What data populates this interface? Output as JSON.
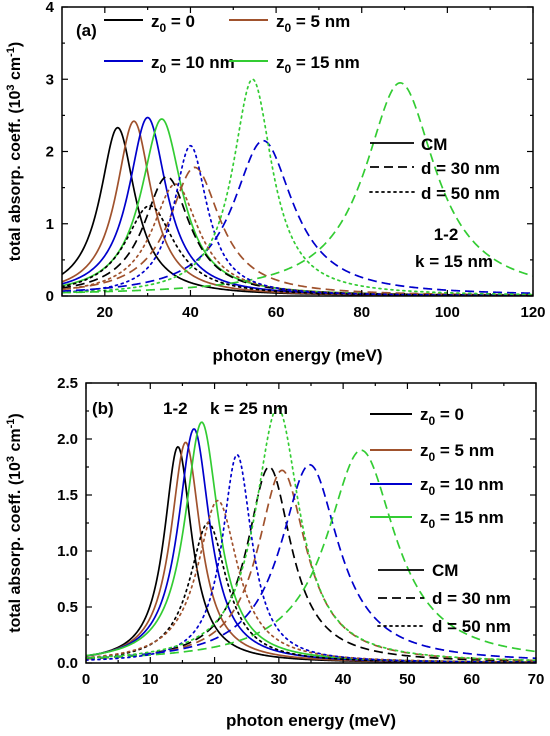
{
  "chart_data": [
    {
      "type": "line",
      "panel_label": "(a)",
      "xlabel": "photon energy (meV)",
      "ylabel_parts": [
        "total absorp. coeff. (10",
        "3",
        " cm",
        "-1",
        ")"
      ],
      "xlim": [
        10,
        120
      ],
      "ylim": [
        0,
        4
      ],
      "x_ticks": [
        20,
        40,
        60,
        80,
        100,
        120
      ],
      "y_ticks": [
        0,
        1,
        2,
        3,
        4
      ],
      "grid": false,
      "annotation_lines": [
        "1-2",
        "k = 15 nm"
      ],
      "series": [
        {
          "z0_label": "0",
          "d_label": "CM",
          "color": "#000000",
          "style": "solid",
          "peak_x": 23.0,
          "peak_y": 2.33
        },
        {
          "z0_label": "5 nm",
          "d_label": "CM",
          "color": "#a0522d",
          "style": "solid",
          "peak_x": 26.8,
          "peak_y": 2.42
        },
        {
          "z0_label": "10 nm",
          "d_label": "CM",
          "color": "#0000cc",
          "style": "solid",
          "peak_x": 30.0,
          "peak_y": 2.47
        },
        {
          "z0_label": "15 nm",
          "d_label": "CM",
          "color": "#33cc33",
          "style": "solid",
          "peak_x": 33.3,
          "peak_y": 2.45
        },
        {
          "z0_label": "0",
          "d_label": "d = 30 nm",
          "color": "#000000",
          "style": "dash",
          "peak_x": 34.5,
          "peak_y": 1.65
        },
        {
          "z0_label": "5 nm",
          "d_label": "d = 30 nm",
          "color": "#a0522d",
          "style": "dash",
          "peak_x": 41.0,
          "peak_y": 1.78
        },
        {
          "z0_label": "10 nm",
          "d_label": "d = 30 nm",
          "color": "#0000cc",
          "style": "dash",
          "peak_x": 57.0,
          "peak_y": 2.15
        },
        {
          "z0_label": "15 nm",
          "d_label": "d = 30 nm",
          "color": "#33cc33",
          "style": "dash",
          "peak_x": 89.0,
          "peak_y": 2.95
        },
        {
          "z0_label": "0",
          "d_label": "d = 50 nm",
          "color": "#000000",
          "style": "dot",
          "peak_x": 30.5,
          "peak_y": 1.25
        },
        {
          "z0_label": "5 nm",
          "d_label": "d = 50 nm",
          "color": "#a0522d",
          "style": "dot",
          "peak_x": 36.5,
          "peak_y": 1.55
        },
        {
          "z0_label": "10 nm",
          "d_label": "d = 50 nm",
          "color": "#0000cc",
          "style": "dot",
          "peak_x": 40.0,
          "peak_y": 2.08
        },
        {
          "z0_label": "15 nm",
          "d_label": "d = 50 nm",
          "color": "#33cc33",
          "style": "dot",
          "peak_x": 54.5,
          "peak_y": 3.0
        }
      ]
    },
    {
      "type": "line",
      "panel_label": "(b)",
      "xlabel": "photon energy (meV)",
      "ylabel_parts": [
        "total absorp. coeff. (10",
        "3",
        " cm",
        "-1",
        ")"
      ],
      "xlim": [
        0,
        70
      ],
      "ylim": [
        0,
        2.5
      ],
      "x_ticks": [
        0,
        10,
        20,
        30,
        40,
        50,
        60,
        70
      ],
      "y_ticks": [
        0.0,
        0.5,
        1.0,
        1.5,
        2.0,
        2.5
      ],
      "grid": false,
      "annotation_lines": [
        "1-2",
        "k = 25 nm"
      ],
      "series": [
        {
          "z0_label": "0",
          "d_label": "CM",
          "color": "#000000",
          "style": "solid",
          "peak_x": 14.3,
          "peak_y": 1.93
        },
        {
          "z0_label": "5 nm",
          "d_label": "CM",
          "color": "#a0522d",
          "style": "solid",
          "peak_x": 15.5,
          "peak_y": 1.97
        },
        {
          "z0_label": "10 nm",
          "d_label": "CM",
          "color": "#0000cc",
          "style": "solid",
          "peak_x": 16.8,
          "peak_y": 2.09
        },
        {
          "z0_label": "15 nm",
          "d_label": "CM",
          "color": "#33cc33",
          "style": "solid",
          "peak_x": 18.0,
          "peak_y": 2.15
        },
        {
          "z0_label": "0",
          "d_label": "d = 30 nm",
          "color": "#000000",
          "style": "dash",
          "peak_x": 28.5,
          "peak_y": 1.75
        },
        {
          "z0_label": "5 nm",
          "d_label": "d = 30 nm",
          "color": "#a0522d",
          "style": "dash",
          "peak_x": 30.5,
          "peak_y": 1.72
        },
        {
          "z0_label": "10 nm",
          "d_label": "d = 30 nm",
          "color": "#0000cc",
          "style": "dash",
          "peak_x": 34.8,
          "peak_y": 1.77
        },
        {
          "z0_label": "15 nm",
          "d_label": "d = 30 nm",
          "color": "#33cc33",
          "style": "dash",
          "peak_x": 42.8,
          "peak_y": 1.9
        },
        {
          "z0_label": "0",
          "d_label": "d = 50 nm",
          "color": "#000000",
          "style": "dot",
          "peak_x": 19.0,
          "peak_y": 1.25
        },
        {
          "z0_label": "5 nm",
          "d_label": "d = 50 nm",
          "color": "#a0522d",
          "style": "dot",
          "peak_x": 20.5,
          "peak_y": 1.45
        },
        {
          "z0_label": "10 nm",
          "d_label": "d = 50 nm",
          "color": "#0000cc",
          "style": "dot",
          "peak_x": 23.5,
          "peak_y": 1.86
        },
        {
          "z0_label": "15 nm",
          "d_label": "d = 50 nm",
          "color": "#33cc33",
          "style": "dot",
          "peak_x": 29.8,
          "peak_y": 2.28
        }
      ]
    }
  ],
  "legend_color": {
    "z_symbol": "z",
    "z_subscript": "0",
    "entries": [
      {
        "value": "0",
        "color": "#000000"
      },
      {
        "value": "5 nm",
        "color": "#a0522d"
      },
      {
        "value": "10 nm",
        "color": "#0000cc"
      },
      {
        "value": "15 nm",
        "color": "#33cc33"
      }
    ]
  },
  "legend_style": {
    "entries": [
      {
        "label": "CM",
        "style": "solid"
      },
      {
        "label": "d = 30 nm",
        "style": "dash"
      },
      {
        "label": "d = 50 nm",
        "style": "dot"
      }
    ]
  }
}
